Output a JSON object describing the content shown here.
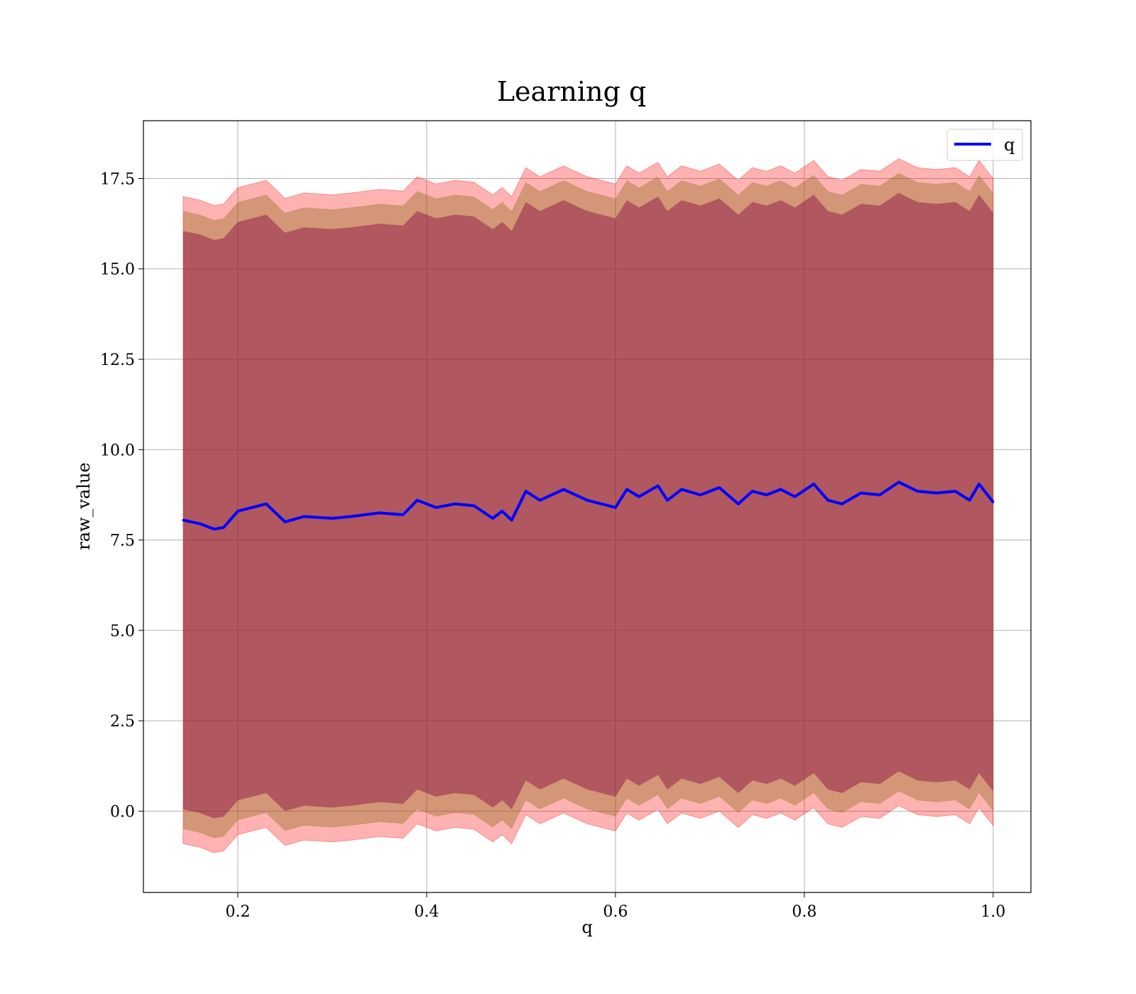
{
  "chart_data": {
    "type": "area",
    "title": "Learning q",
    "xlabel": "q",
    "ylabel": "raw_value",
    "xlim": [
      0.1,
      1.04
    ],
    "ylim": [
      -2.25,
      19.1
    ],
    "xticks": [
      0.2,
      0.4,
      0.6,
      0.8,
      1.0
    ],
    "xtick_labels": [
      "0.2",
      "0.4",
      "0.6",
      "0.8",
      "1.0"
    ],
    "yticks": [
      0.0,
      2.5,
      5.0,
      7.5,
      10.0,
      12.5,
      15.0,
      17.5
    ],
    "ytick_labels": [
      "0.0",
      "2.5",
      "5.0",
      "7.5",
      "10.0",
      "12.5",
      "15.0",
      "17.5"
    ],
    "grid": true,
    "legend": {
      "position": "top-right",
      "entries": [
        "q"
      ]
    },
    "colors": {
      "line": "#0000ff",
      "band_outer": "#ff0000",
      "band_middle": "#8b6914",
      "band_inner": "#800040",
      "grid": "#b0b0b0"
    },
    "series": [
      {
        "name": "q",
        "x": [
          0.142,
          0.16,
          0.175,
          0.185,
          0.2,
          0.215,
          0.23,
          0.25,
          0.27,
          0.3,
          0.32,
          0.35,
          0.375,
          0.39,
          0.41,
          0.43,
          0.45,
          0.47,
          0.48,
          0.49,
          0.505,
          0.52,
          0.545,
          0.57,
          0.6,
          0.612,
          0.625,
          0.645,
          0.655,
          0.67,
          0.69,
          0.71,
          0.73,
          0.745,
          0.76,
          0.775,
          0.79,
          0.81,
          0.825,
          0.84,
          0.86,
          0.88,
          0.9,
          0.92,
          0.94,
          0.96,
          0.975,
          0.985,
          1.0
        ],
        "values": [
          8.05,
          7.95,
          7.8,
          7.85,
          8.3,
          8.4,
          8.5,
          8.0,
          8.15,
          8.1,
          8.15,
          8.25,
          8.2,
          8.6,
          8.4,
          8.5,
          8.45,
          8.1,
          8.3,
          8.05,
          8.85,
          8.6,
          8.9,
          8.6,
          8.4,
          8.9,
          8.7,
          9.0,
          8.6,
          8.9,
          8.75,
          8.95,
          8.5,
          8.85,
          8.75,
          8.9,
          8.7,
          9.05,
          8.6,
          8.5,
          8.8,
          8.75,
          9.1,
          8.85,
          8.8,
          8.85,
          8.6,
          9.05,
          8.55
        ],
        "band_outer_offset": 8.95,
        "band_middle_offset": 8.55,
        "band_inner_offset": 8.0
      }
    ]
  }
}
